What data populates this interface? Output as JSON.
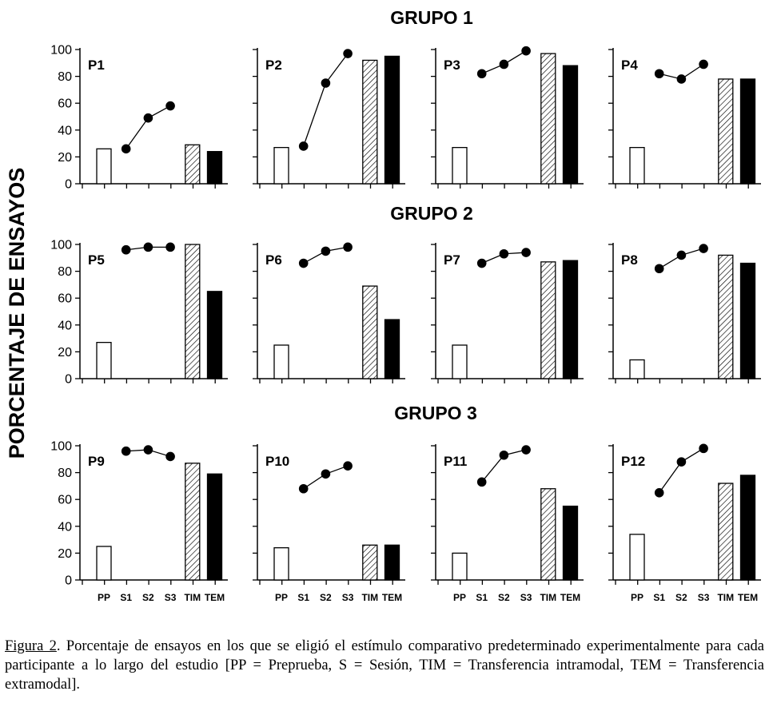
{
  "figure": {
    "ylabel": "PORCENTAJE DE ENSAYOS",
    "groups": [
      "GRUPO 1",
      "GRUPO 2",
      "GRUPO 3"
    ]
  },
  "caption": {
    "label": "Figura 2",
    "text": ". Porcentaje de ensayos en los que se eligió el estímulo comparativo predeterminado experimentalmente para cada participante a lo largo del estudio [PP = Preprueba, S = Sesión, TIM = Transferencia intramodal, TEM = Transferencia extramodal]."
  },
  "colors": {
    "pp_bar": "#ffffff",
    "tim_bar": "hatched",
    "tem_bar": "#000000",
    "sessions": "#000000"
  },
  "chart_data": {
    "type": "bar",
    "categories": [
      "PP",
      "S1",
      "S2",
      "S3",
      "TIM",
      "TEM"
    ],
    "ylim": [
      0,
      100
    ],
    "yticks": [
      0,
      20,
      40,
      60,
      80,
      100
    ],
    "panels": [
      {
        "label": "P1",
        "group": "GRUPO 1",
        "pp": 26,
        "sessions": [
          26,
          49,
          58
        ],
        "tim": 29,
        "tem": 24
      },
      {
        "label": "P2",
        "group": "GRUPO 1",
        "pp": 27,
        "sessions": [
          28,
          75,
          97
        ],
        "tim": 92,
        "tem": 95
      },
      {
        "label": "P3",
        "group": "GRUPO 1",
        "pp": 27,
        "sessions": [
          82,
          89,
          99
        ],
        "tim": 97,
        "tem": 88
      },
      {
        "label": "P4",
        "group": "GRUPO 1",
        "pp": 27,
        "sessions": [
          82,
          78,
          89
        ],
        "tim": 78,
        "tem": 78
      },
      {
        "label": "P5",
        "group": "GRUPO 2",
        "pp": 27,
        "sessions": [
          96,
          98,
          98
        ],
        "tim": 100,
        "tem": 65
      },
      {
        "label": "P6",
        "group": "GRUPO 2",
        "pp": 25,
        "sessions": [
          86,
          95,
          98
        ],
        "tim": 69,
        "tem": 44
      },
      {
        "label": "P7",
        "group": "GRUPO 2",
        "pp": 25,
        "sessions": [
          86,
          93,
          94
        ],
        "tim": 87,
        "tem": 88
      },
      {
        "label": "P8",
        "group": "GRUPO 2",
        "pp": 14,
        "sessions": [
          82,
          92,
          97
        ],
        "tim": 92,
        "tem": 86
      },
      {
        "label": "P9",
        "group": "GRUPO 3",
        "pp": 25,
        "sessions": [
          96,
          97,
          92
        ],
        "tim": 87,
        "tem": 79
      },
      {
        "label": "P10",
        "group": "GRUPO 3",
        "pp": 24,
        "sessions": [
          68,
          79,
          85
        ],
        "tim": 26,
        "tem": 26
      },
      {
        "label": "P11",
        "group": "GRUPO 3",
        "pp": 20,
        "sessions": [
          73,
          93,
          97
        ],
        "tim": 68,
        "tem": 55
      },
      {
        "label": "P12",
        "group": "GRUPO 3",
        "pp": 34,
        "sessions": [
          65,
          88,
          98
        ],
        "tim": 72,
        "tem": 78
      }
    ]
  }
}
